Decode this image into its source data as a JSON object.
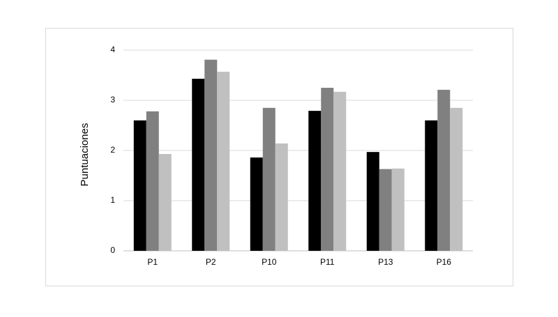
{
  "chart_data": {
    "type": "bar",
    "y_label": "Puntuaciones",
    "categories": [
      "P1",
      "P2",
      "P10",
      "P11",
      "P13",
      "P16"
    ],
    "series": [
      {
        "color": "#000000",
        "values": [
          2.6,
          3.43,
          1.86,
          2.79,
          1.97,
          2.6
        ]
      },
      {
        "color": "#808080",
        "values": [
          2.78,
          3.81,
          2.85,
          3.25,
          1.63,
          3.21
        ]
      },
      {
        "color": "#c0c0c0",
        "values": [
          1.93,
          3.57,
          2.14,
          3.17,
          1.64,
          2.85
        ]
      }
    ],
    "ylim": [
      0,
      4
    ],
    "yticks": [
      0,
      1,
      2,
      3,
      4
    ],
    "grid": true
  }
}
